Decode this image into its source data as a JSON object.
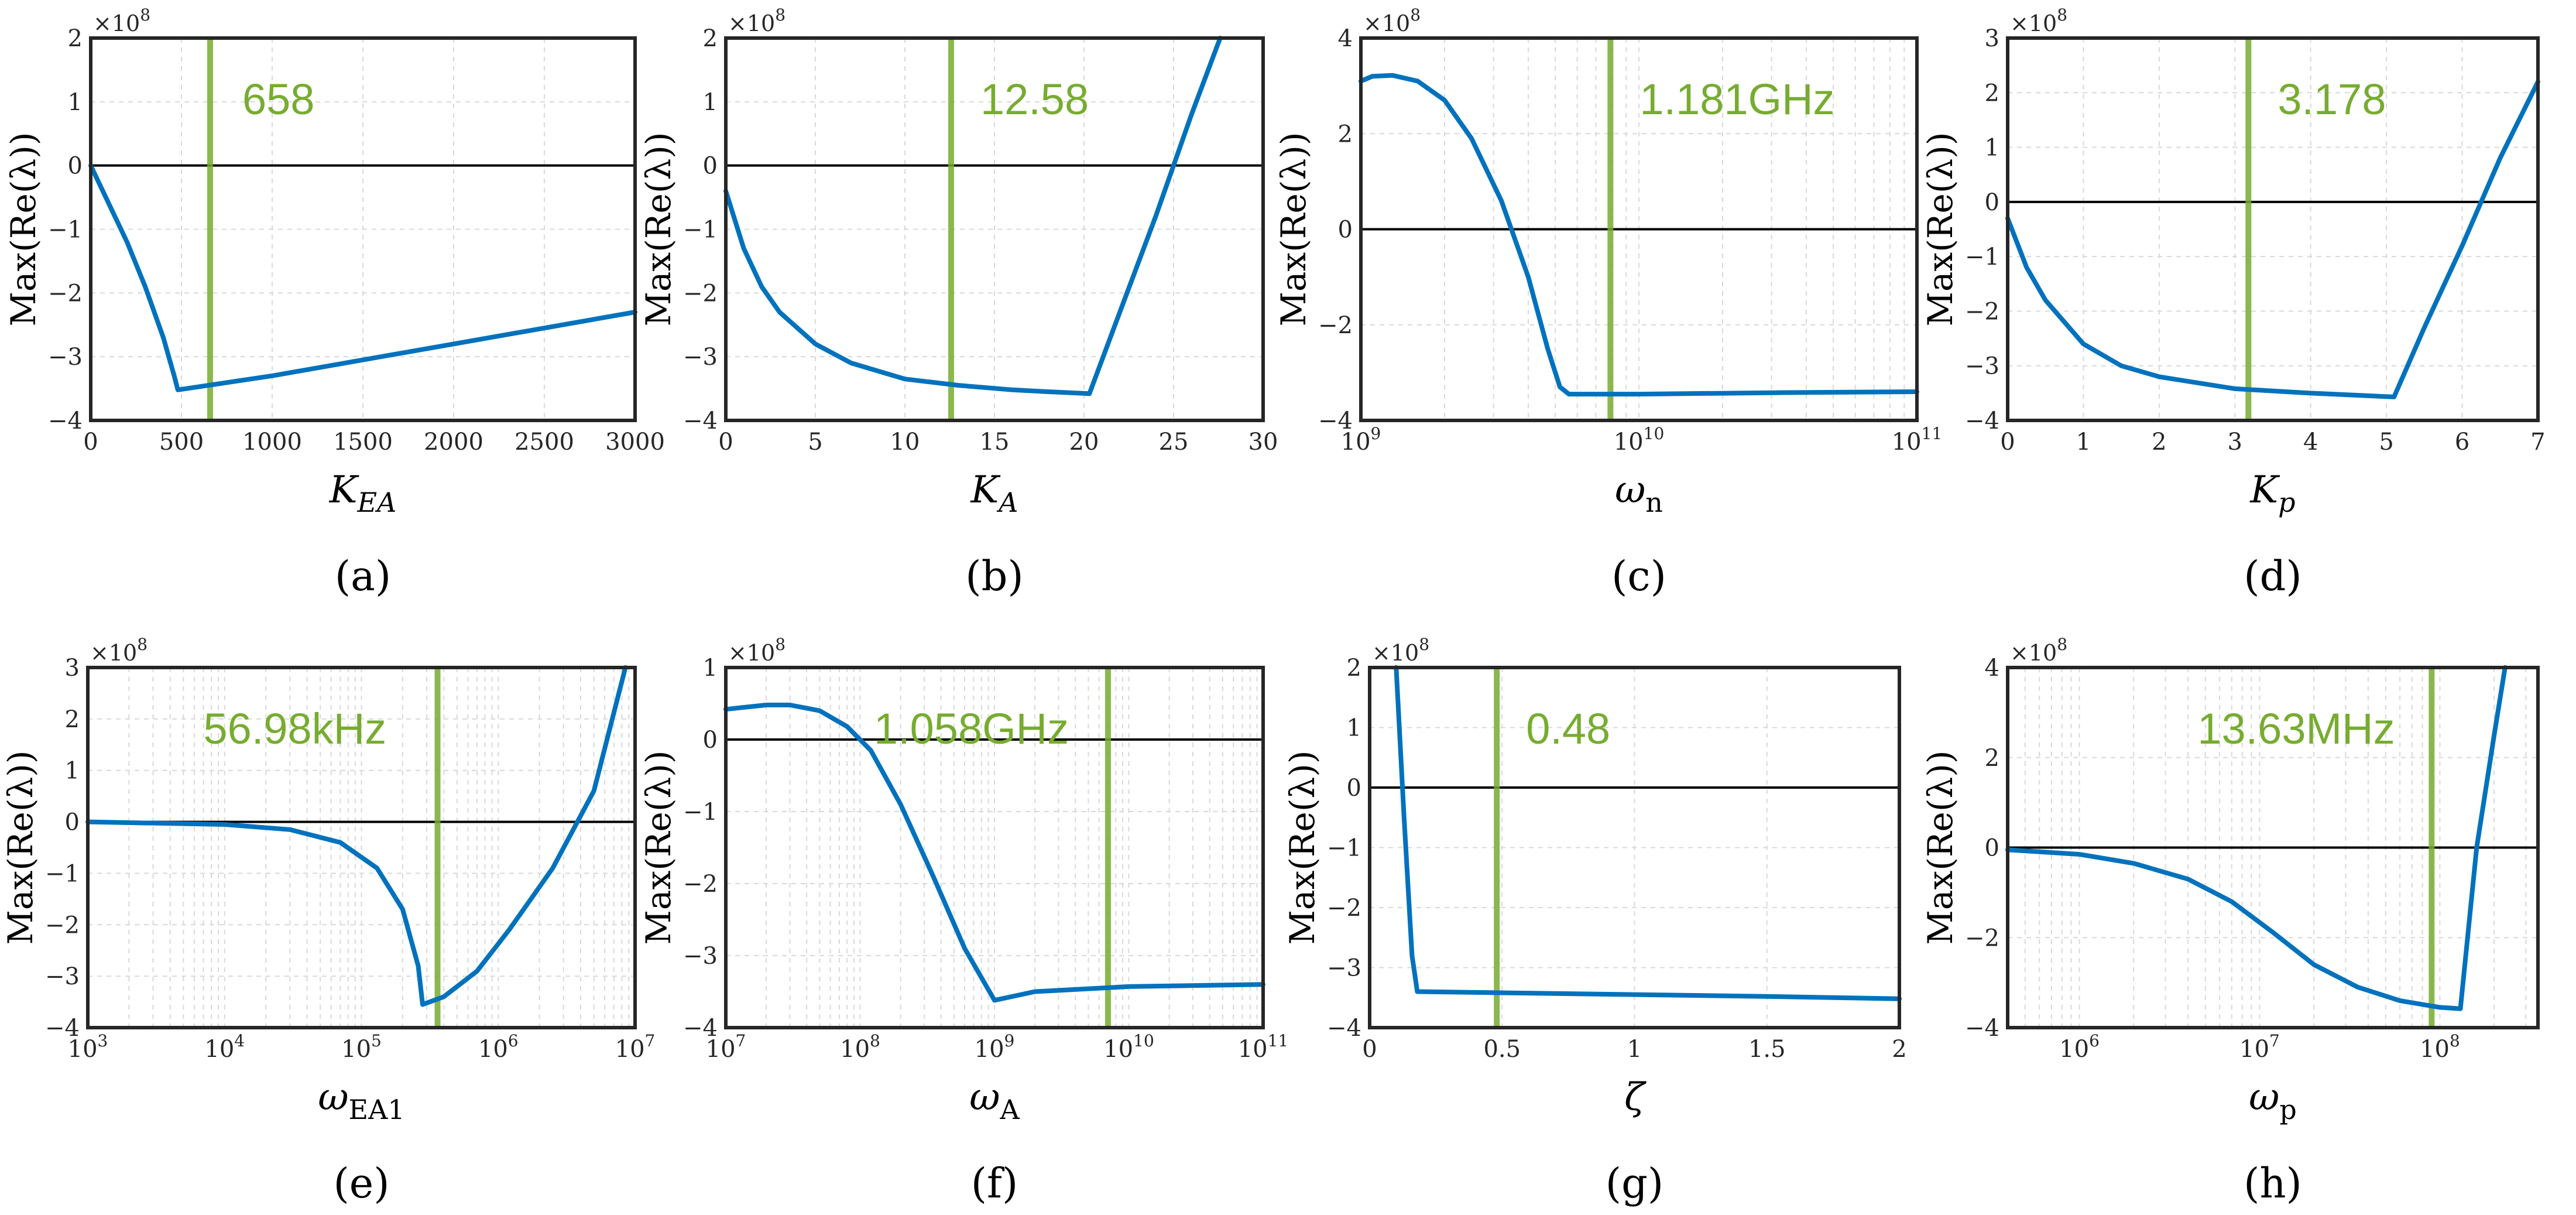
{
  "chart_data": [
    {
      "type": "line",
      "panel": "(a)",
      "xlabel": "K",
      "xlabel_sub": "EA",
      "xscale": "linear",
      "xlim": [
        0,
        3000
      ],
      "xticks": [
        0,
        500,
        1000,
        1500,
        2000,
        2500,
        3000
      ],
      "xtick_labels": [
        "0",
        "500",
        "1000",
        "1500",
        "2000",
        "2500",
        "3000"
      ],
      "ylabel": "Max(Re(λ))",
      "ylim": [
        -4,
        2
      ],
      "yticks": [
        -4,
        -3,
        -2,
        -1,
        0,
        1,
        2
      ],
      "ytick_labels": [
        "−4",
        "−3",
        "−2",
        "−1",
        "0",
        "1",
        "2"
      ],
      "y_exponent": "×10",
      "y_exponent_power": "8",
      "marker_x": 658,
      "marker_label": "658",
      "series": [
        {
          "name": "Max(Re(λ))",
          "x": [
            0,
            100,
            200,
            300,
            400,
            460,
            480,
            1000,
            2000,
            3000
          ],
          "y": [
            0,
            -0.6,
            -1.2,
            -1.9,
            -2.7,
            -3.3,
            -3.52,
            -3.3,
            -2.8,
            -2.3
          ]
        }
      ]
    },
    {
      "type": "line",
      "panel": "(b)",
      "xlabel": "K",
      "xlabel_sub": "A",
      "xscale": "linear",
      "xlim": [
        0,
        30
      ],
      "xticks": [
        0,
        5,
        10,
        15,
        20,
        25,
        30
      ],
      "xtick_labels": [
        "0",
        "5",
        "10",
        "15",
        "20",
        "25",
        "30"
      ],
      "ylabel": "Max(Re(λ))",
      "ylim": [
        -4,
        2
      ],
      "yticks": [
        -4,
        -3,
        -2,
        -1,
        0,
        1,
        2
      ],
      "ytick_labels": [
        "−4",
        "−3",
        "−2",
        "−1",
        "0",
        "1",
        "2"
      ],
      "y_exponent": "×10",
      "y_exponent_power": "8",
      "marker_x": 12.58,
      "marker_label": "12.58",
      "series": [
        {
          "name": "Max(Re(λ))",
          "x": [
            0,
            1,
            2,
            3,
            5,
            7,
            10,
            13,
            16,
            18,
            20.3,
            22,
            24,
            26,
            27.6
          ],
          "y": [
            -0.4,
            -1.3,
            -1.9,
            -2.3,
            -2.8,
            -3.1,
            -3.35,
            -3.45,
            -3.52,
            -3.55,
            -3.58,
            -2.3,
            -0.8,
            0.8,
            2.0
          ]
        }
      ]
    },
    {
      "type": "line",
      "panel": "(c)",
      "xlabel": "ω",
      "xlabel_sub": "n",
      "xscale": "log",
      "xlim": [
        1000000000,
        100000000000
      ],
      "xticks": [
        1000000000,
        10000000000,
        100000000000
      ],
      "xtick_labels": [
        "10",
        "10",
        "10"
      ],
      "xtick_powers": [
        "9",
        "10",
        "11"
      ],
      "ylabel": "Max(Re(λ))",
      "ylim": [
        -4,
        4
      ],
      "yticks": [
        -4,
        -2,
        0,
        2,
        4
      ],
      "ytick_labels": [
        "−4",
        "−2",
        "0",
        "2",
        "4"
      ],
      "y_exponent": "×10",
      "y_exponent_power": "8",
      "marker_x": 7900000000,
      "marker_label": "1.181GHz",
      "series": [
        {
          "name": "Max(Re(λ))",
          "x": [
            1000000000,
            1100000000,
            1300000000,
            1600000000,
            2000000000,
            2500000000,
            3200000000,
            4000000000,
            4700000000,
            5200000000,
            5600000000,
            10000000000,
            30000000000,
            100000000000
          ],
          "y": [
            3.1,
            3.2,
            3.22,
            3.1,
            2.7,
            1.9,
            0.6,
            -1.0,
            -2.5,
            -3.3,
            -3.45,
            -3.45,
            -3.42,
            -3.4
          ]
        }
      ]
    },
    {
      "type": "line",
      "panel": "(d)",
      "xlabel": "K",
      "xlabel_sub": "p",
      "xscale": "linear",
      "xlim": [
        0,
        7
      ],
      "xticks": [
        0,
        1,
        2,
        3,
        4,
        5,
        6,
        7
      ],
      "xtick_labels": [
        "0",
        "1",
        "2",
        "3",
        "4",
        "5",
        "6",
        "7"
      ],
      "ylabel": "Max(Re(λ))",
      "ylim": [
        -4,
        3
      ],
      "yticks": [
        -4,
        -3,
        -2,
        -1,
        0,
        1,
        2,
        3
      ],
      "ytick_labels": [
        "−4",
        "−3",
        "−2",
        "−1",
        "0",
        "1",
        "2",
        "3"
      ],
      "y_exponent": "×10",
      "y_exponent_power": "8",
      "marker_x": 3.178,
      "marker_label": "3.178",
      "series": [
        {
          "name": "Max(Re(λ))",
          "x": [
            0,
            0.25,
            0.5,
            1,
            1.5,
            2,
            3,
            4,
            5.1,
            5.5,
            6,
            6.5,
            7
          ],
          "y": [
            -0.3,
            -1.2,
            -1.8,
            -2.6,
            -3.0,
            -3.2,
            -3.42,
            -3.5,
            -3.57,
            -2.3,
            -0.8,
            0.8,
            2.2
          ]
        }
      ]
    },
    {
      "type": "line",
      "panel": "(e)",
      "xlabel": "ω",
      "xlabel_sub": "EA1",
      "xscale": "log",
      "xlim": [
        1000,
        10000000
      ],
      "xticks": [
        1000,
        10000,
        100000,
        1000000,
        10000000
      ],
      "xtick_labels": [
        "10",
        "10",
        "10",
        "10",
        "10"
      ],
      "xtick_powers": [
        "3",
        "4",
        "5",
        "6",
        "7"
      ],
      "ylabel": "Max(Re(λ))",
      "ylim": [
        -4,
        3
      ],
      "yticks": [
        -4,
        -3,
        -2,
        -1,
        0,
        1,
        2,
        3
      ],
      "ytick_labels": [
        "−4",
        "−3",
        "−2",
        "−1",
        "0",
        "1",
        "2",
        "3"
      ],
      "y_exponent": "×10",
      "y_exponent_power": "8",
      "marker_x": 360000,
      "marker_label": "56.98kHz",
      "series": [
        {
          "name": "Max(Re(λ))",
          "x": [
            1000,
            10000,
            30000,
            70000,
            130000,
            200000,
            260000,
            280000,
            400000,
            700000,
            1200000,
            2500000,
            5000000,
            8500000
          ],
          "y": [
            0,
            -0.05,
            -0.15,
            -0.4,
            -0.9,
            -1.7,
            -2.8,
            -3.55,
            -3.4,
            -2.9,
            -2.1,
            -0.9,
            0.6,
            3.0
          ]
        }
      ]
    },
    {
      "type": "line",
      "panel": "(f)",
      "xlabel": "ω",
      "xlabel_sub": "A",
      "xscale": "log",
      "xlim": [
        10000000,
        100000000000
      ],
      "xticks": [
        10000000,
        100000000,
        1000000000,
        10000000000,
        100000000000
      ],
      "xtick_labels": [
        "10",
        "10",
        "10",
        "10",
        "10"
      ],
      "xtick_powers": [
        "7",
        "8",
        "9",
        "10",
        "11"
      ],
      "ylabel": "Max(Re(λ))",
      "ylim": [
        -4,
        1
      ],
      "yticks": [
        -4,
        -3,
        -2,
        -1,
        0,
        1
      ],
      "ytick_labels": [
        "−4",
        "−3",
        "−2",
        "−1",
        "0",
        "1"
      ],
      "y_exponent": "×10",
      "y_exponent_power": "8",
      "marker_x": 7000000000,
      "marker_label": "1.058GHz",
      "series": [
        {
          "name": "Max(Re(λ))",
          "x": [
            10000000,
            20000000,
            30000000,
            50000000,
            80000000,
            120000000,
            200000000,
            350000000,
            600000000,
            1000000000,
            2000000000,
            10000000000,
            100000000000
          ],
          "y": [
            0.42,
            0.48,
            0.48,
            0.4,
            0.18,
            -0.15,
            -0.9,
            -1.9,
            -2.9,
            -3.62,
            -3.5,
            -3.43,
            -3.4
          ]
        }
      ]
    },
    {
      "type": "line",
      "panel": "(g)",
      "xlabel": "ζ",
      "xlabel_sub": "",
      "xscale": "linear",
      "xlim": [
        0,
        2
      ],
      "xticks": [
        0,
        0.5,
        1,
        1.5,
        2
      ],
      "xtick_labels": [
        "0",
        "0.5",
        "1",
        "1.5",
        "2"
      ],
      "ylabel": "Max(Re(λ))",
      "ylim": [
        -4,
        2
      ],
      "yticks": [
        -4,
        -3,
        -2,
        -1,
        0,
        1,
        2
      ],
      "ytick_labels": [
        "−4",
        "−3",
        "−2",
        "−1",
        "0",
        "1",
        "2"
      ],
      "y_exponent": "×10",
      "y_exponent_power": "8",
      "marker_x": 0.48,
      "marker_label": "0.48",
      "series": [
        {
          "name": "Max(Re(λ))",
          "x": [
            0.1,
            0.13,
            0.16,
            0.18,
            0.5,
            1,
            1.5,
            2
          ],
          "y": [
            2.0,
            -0.5,
            -2.8,
            -3.4,
            -3.42,
            -3.45,
            -3.48,
            -3.52
          ]
        }
      ]
    },
    {
      "type": "line",
      "panel": "(h)",
      "xlabel": "ω",
      "xlabel_sub": "p",
      "xscale": "log",
      "xlim": [
        400000,
        350000000
      ],
      "xticks": [
        1000000,
        10000000,
        100000000
      ],
      "xtick_labels": [
        "10",
        "10",
        "10"
      ],
      "xtick_powers": [
        "6",
        "7",
        "8"
      ],
      "ylabel": "Max(Re(λ))",
      "ylim": [
        -4,
        4
      ],
      "yticks": [
        -4,
        -2,
        0,
        2,
        4
      ],
      "ytick_labels": [
        "−4",
        "−2",
        "0",
        "2",
        "4"
      ],
      "y_exponent": "×10",
      "y_exponent_power": "8",
      "marker_x": 90000000,
      "marker_label": "13.63MHz",
      "series": [
        {
          "name": "Max(Re(λ))",
          "x": [
            400000,
            1000000,
            2000000,
            4000000,
            7000000,
            12000000,
            20000000,
            35000000,
            60000000,
            100000000,
            130000000,
            160000000,
            200000000,
            230000000
          ],
          "y": [
            -0.05,
            -0.15,
            -0.35,
            -0.7,
            -1.2,
            -1.9,
            -2.6,
            -3.1,
            -3.4,
            -3.55,
            -3.58,
            0,
            2.5,
            4.0
          ]
        }
      ]
    }
  ]
}
